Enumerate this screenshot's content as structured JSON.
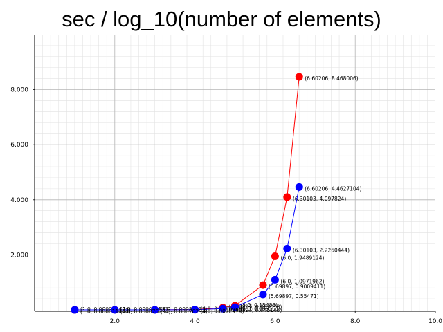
{
  "chart_data": {
    "type": "line",
    "title": "sec / log_10(number of elements)",
    "xlabel": "",
    "ylabel": "",
    "xlim": [
      0,
      10
    ],
    "ylim": [
      -0.05,
      10
    ],
    "x_ticks": [
      "2.0",
      "4.0",
      "6.0",
      "8.0",
      "10.0"
    ],
    "y_ticks": [
      "2.000",
      "4.000",
      "6.000",
      "8.000"
    ],
    "grid": true,
    "series": [
      {
        "color": "#ff0000",
        "x": [
          1.0,
          2.0,
          3.0,
          4.0,
          4.69897,
          5.0,
          5.69897,
          6.0,
          6.30103,
          6.60206
        ],
        "y": [
          1.14e-05,
          9.16e-05,
          0.0008583,
          0.0096369,
          0.0830727,
          0.1548848,
          0.9009411,
          1.9489124,
          4.097824,
          8.468006
        ],
        "labels": [
          "(1.0, 0.000011444)",
          "(2.0, 0.000091553)",
          "(3.0, 0.00085831)",
          "(4.0, 0.0096369)",
          "(4.69897, 0.083073)",
          "(5.0, 0.15488)",
          "(5.69897, 0.9009411)",
          "(6.0, 1.9489124)",
          "(6.30103, 4.097824)",
          "(6.60206, 8.468006)"
        ]
      },
      {
        "color": "#0000ff",
        "x": [
          1.0,
          2.0,
          3.0,
          4.0,
          4.69897,
          5.0,
          5.69897,
          6.0,
          6.30103,
          6.60206
        ],
        "y": [
          1.14e-05,
          7.63e-05,
          0.0007629,
          0.0072479,
          0.0451431,
          0.0991612,
          0.55471,
          1.0971962,
          2.2260444,
          4.4627104
        ],
        "labels": [
          "(1.0, 0.000011444)",
          "(2.0, 0.000076294)",
          "(3.0, 0.00076294)",
          "(4.0, 0.0072479)",
          "(4.69897, 0.045143)",
          "(5.0, 0.099161)",
          "(5.69897, 0.55471)",
          "(6.0, 1.0971962)",
          "(6.30103, 2.2260444)",
          "(6.60206, 4.4627104)"
        ]
      }
    ]
  }
}
